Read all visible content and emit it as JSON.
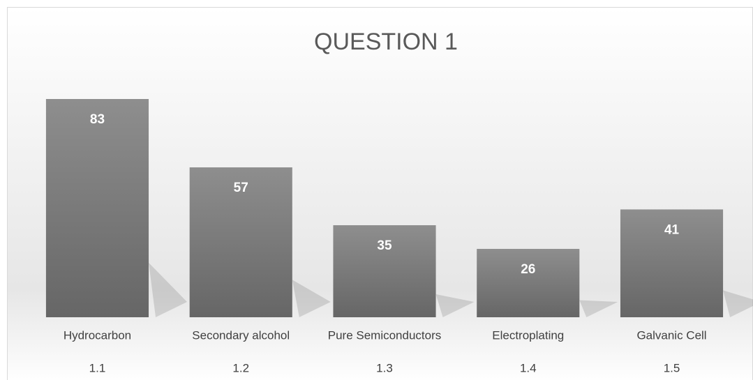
{
  "chart_data": {
    "type": "bar",
    "title": "QUESTION 1",
    "categories": [
      "Hydrocarbon",
      "Secondary alcohol",
      "Pure Semiconductors",
      "Electroplating",
      "Galvanic Cell"
    ],
    "subcategories": [
      "1.1",
      "1.2",
      "1.3",
      "1.4",
      "1.5"
    ],
    "values": [
      83,
      57,
      35,
      26,
      41
    ],
    "color": "#7a7a7a"
  }
}
